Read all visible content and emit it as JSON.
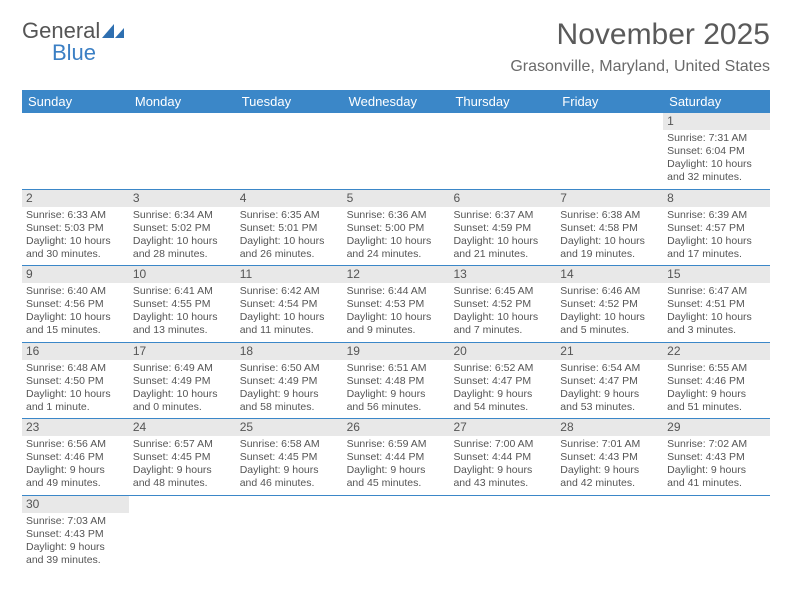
{
  "logo": {
    "text1": "General",
    "text2": "Blue"
  },
  "title": "November 2025",
  "location": "Grasonville, Maryland, United States",
  "weekdays": [
    "Sunday",
    "Monday",
    "Tuesday",
    "Wednesday",
    "Thursday",
    "Friday",
    "Saturday"
  ],
  "colors": {
    "header_bg": "#3b87c8",
    "header_text": "#ffffff",
    "daynum_bg": "#e8e8e8",
    "text": "#555555",
    "row_border": "#3b87c8",
    "logo_blue": "#3b7fc4"
  },
  "weeks": [
    [
      {
        "n": "",
        "empty": true
      },
      {
        "n": "",
        "empty": true
      },
      {
        "n": "",
        "empty": true
      },
      {
        "n": "",
        "empty": true
      },
      {
        "n": "",
        "empty": true
      },
      {
        "n": "",
        "empty": true
      },
      {
        "n": "1",
        "sunrise": "Sunrise: 7:31 AM",
        "sunset": "Sunset: 6:04 PM",
        "day1": "Daylight: 10 hours",
        "day2": "and 32 minutes."
      }
    ],
    [
      {
        "n": "2",
        "sunrise": "Sunrise: 6:33 AM",
        "sunset": "Sunset: 5:03 PM",
        "day1": "Daylight: 10 hours",
        "day2": "and 30 minutes."
      },
      {
        "n": "3",
        "sunrise": "Sunrise: 6:34 AM",
        "sunset": "Sunset: 5:02 PM",
        "day1": "Daylight: 10 hours",
        "day2": "and 28 minutes."
      },
      {
        "n": "4",
        "sunrise": "Sunrise: 6:35 AM",
        "sunset": "Sunset: 5:01 PM",
        "day1": "Daylight: 10 hours",
        "day2": "and 26 minutes."
      },
      {
        "n": "5",
        "sunrise": "Sunrise: 6:36 AM",
        "sunset": "Sunset: 5:00 PM",
        "day1": "Daylight: 10 hours",
        "day2": "and 24 minutes."
      },
      {
        "n": "6",
        "sunrise": "Sunrise: 6:37 AM",
        "sunset": "Sunset: 4:59 PM",
        "day1": "Daylight: 10 hours",
        "day2": "and 21 minutes."
      },
      {
        "n": "7",
        "sunrise": "Sunrise: 6:38 AM",
        "sunset": "Sunset: 4:58 PM",
        "day1": "Daylight: 10 hours",
        "day2": "and 19 minutes."
      },
      {
        "n": "8",
        "sunrise": "Sunrise: 6:39 AM",
        "sunset": "Sunset: 4:57 PM",
        "day1": "Daylight: 10 hours",
        "day2": "and 17 minutes."
      }
    ],
    [
      {
        "n": "9",
        "sunrise": "Sunrise: 6:40 AM",
        "sunset": "Sunset: 4:56 PM",
        "day1": "Daylight: 10 hours",
        "day2": "and 15 minutes."
      },
      {
        "n": "10",
        "sunrise": "Sunrise: 6:41 AM",
        "sunset": "Sunset: 4:55 PM",
        "day1": "Daylight: 10 hours",
        "day2": "and 13 minutes."
      },
      {
        "n": "11",
        "sunrise": "Sunrise: 6:42 AM",
        "sunset": "Sunset: 4:54 PM",
        "day1": "Daylight: 10 hours",
        "day2": "and 11 minutes."
      },
      {
        "n": "12",
        "sunrise": "Sunrise: 6:44 AM",
        "sunset": "Sunset: 4:53 PM",
        "day1": "Daylight: 10 hours",
        "day2": "and 9 minutes."
      },
      {
        "n": "13",
        "sunrise": "Sunrise: 6:45 AM",
        "sunset": "Sunset: 4:52 PM",
        "day1": "Daylight: 10 hours",
        "day2": "and 7 minutes."
      },
      {
        "n": "14",
        "sunrise": "Sunrise: 6:46 AM",
        "sunset": "Sunset: 4:52 PM",
        "day1": "Daylight: 10 hours",
        "day2": "and 5 minutes."
      },
      {
        "n": "15",
        "sunrise": "Sunrise: 6:47 AM",
        "sunset": "Sunset: 4:51 PM",
        "day1": "Daylight: 10 hours",
        "day2": "and 3 minutes."
      }
    ],
    [
      {
        "n": "16",
        "sunrise": "Sunrise: 6:48 AM",
        "sunset": "Sunset: 4:50 PM",
        "day1": "Daylight: 10 hours",
        "day2": "and 1 minute."
      },
      {
        "n": "17",
        "sunrise": "Sunrise: 6:49 AM",
        "sunset": "Sunset: 4:49 PM",
        "day1": "Daylight: 10 hours",
        "day2": "and 0 minutes."
      },
      {
        "n": "18",
        "sunrise": "Sunrise: 6:50 AM",
        "sunset": "Sunset: 4:49 PM",
        "day1": "Daylight: 9 hours",
        "day2": "and 58 minutes."
      },
      {
        "n": "19",
        "sunrise": "Sunrise: 6:51 AM",
        "sunset": "Sunset: 4:48 PM",
        "day1": "Daylight: 9 hours",
        "day2": "and 56 minutes."
      },
      {
        "n": "20",
        "sunrise": "Sunrise: 6:52 AM",
        "sunset": "Sunset: 4:47 PM",
        "day1": "Daylight: 9 hours",
        "day2": "and 54 minutes."
      },
      {
        "n": "21",
        "sunrise": "Sunrise: 6:54 AM",
        "sunset": "Sunset: 4:47 PM",
        "day1": "Daylight: 9 hours",
        "day2": "and 53 minutes."
      },
      {
        "n": "22",
        "sunrise": "Sunrise: 6:55 AM",
        "sunset": "Sunset: 4:46 PM",
        "day1": "Daylight: 9 hours",
        "day2": "and 51 minutes."
      }
    ],
    [
      {
        "n": "23",
        "sunrise": "Sunrise: 6:56 AM",
        "sunset": "Sunset: 4:46 PM",
        "day1": "Daylight: 9 hours",
        "day2": "and 49 minutes."
      },
      {
        "n": "24",
        "sunrise": "Sunrise: 6:57 AM",
        "sunset": "Sunset: 4:45 PM",
        "day1": "Daylight: 9 hours",
        "day2": "and 48 minutes."
      },
      {
        "n": "25",
        "sunrise": "Sunrise: 6:58 AM",
        "sunset": "Sunset: 4:45 PM",
        "day1": "Daylight: 9 hours",
        "day2": "and 46 minutes."
      },
      {
        "n": "26",
        "sunrise": "Sunrise: 6:59 AM",
        "sunset": "Sunset: 4:44 PM",
        "day1": "Daylight: 9 hours",
        "day2": "and 45 minutes."
      },
      {
        "n": "27",
        "sunrise": "Sunrise: 7:00 AM",
        "sunset": "Sunset: 4:44 PM",
        "day1": "Daylight: 9 hours",
        "day2": "and 43 minutes."
      },
      {
        "n": "28",
        "sunrise": "Sunrise: 7:01 AM",
        "sunset": "Sunset: 4:43 PM",
        "day1": "Daylight: 9 hours",
        "day2": "and 42 minutes."
      },
      {
        "n": "29",
        "sunrise": "Sunrise: 7:02 AM",
        "sunset": "Sunset: 4:43 PM",
        "day1": "Daylight: 9 hours",
        "day2": "and 41 minutes."
      }
    ],
    [
      {
        "n": "30",
        "sunrise": "Sunrise: 7:03 AM",
        "sunset": "Sunset: 4:43 PM",
        "day1": "Daylight: 9 hours",
        "day2": "and 39 minutes."
      },
      {
        "n": "",
        "empty": true,
        "noBar": true
      },
      {
        "n": "",
        "empty": true,
        "noBar": true
      },
      {
        "n": "",
        "empty": true,
        "noBar": true
      },
      {
        "n": "",
        "empty": true,
        "noBar": true
      },
      {
        "n": "",
        "empty": true,
        "noBar": true
      },
      {
        "n": "",
        "empty": true,
        "noBar": true
      }
    ]
  ]
}
